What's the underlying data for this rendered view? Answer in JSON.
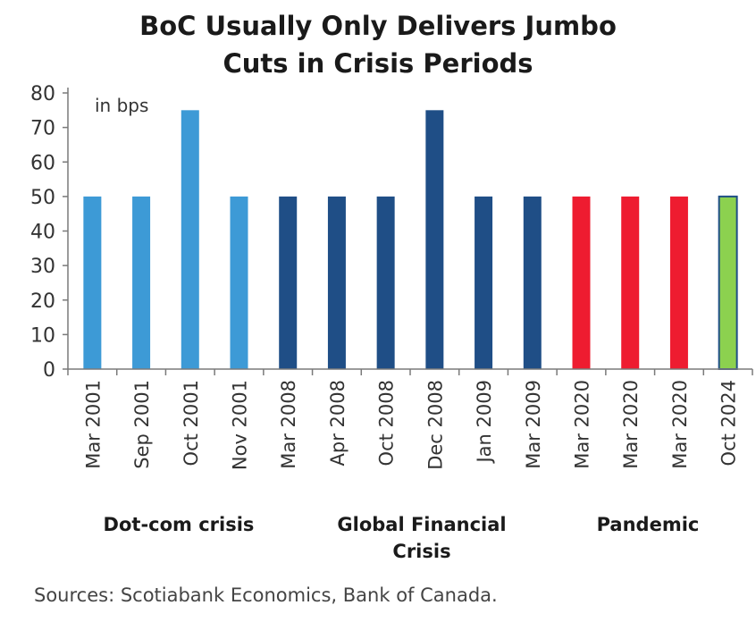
{
  "title_line1": "BoC Usually Only Delivers Jumbo",
  "title_line2": "Cuts in Crisis Periods",
  "source": "Sources: Scotiabank Economics, Bank of Canada.",
  "groups": {
    "dotcom": "Dot-com crisis",
    "gfc_line1": "Global Financial",
    "gfc_line2": "Crisis",
    "pandemic": "Pandemic"
  },
  "colors": {
    "dotcom": "#3d9ad6",
    "gfc": "#1f4e86",
    "pandemic": "#ee1c30",
    "latest": "#8cd14f",
    "latest_border": "#1f4e86"
  },
  "chart_data": {
    "type": "bar",
    "unit_label": "in bps",
    "ylim": [
      0,
      80
    ],
    "yticks": [
      0,
      10,
      20,
      30,
      40,
      50,
      60,
      70,
      80
    ],
    "categories": [
      "Mar 2001",
      "Sep 2001",
      "Oct 2001",
      "Nov 2001",
      "Mar 2008",
      "Apr 2008",
      "Oct 2008",
      "Dec 2008",
      "Jan 2009",
      "Mar 2009",
      "Mar 2020",
      "Mar 2020",
      "Mar 2020",
      "Oct 2024"
    ],
    "values": [
      50,
      50,
      75,
      50,
      50,
      50,
      50,
      75,
      50,
      50,
      50,
      50,
      50,
      50
    ],
    "bar_group": [
      "dotcom",
      "dotcom",
      "dotcom",
      "dotcom",
      "gfc",
      "gfc",
      "gfc",
      "gfc",
      "gfc",
      "gfc",
      "pandemic",
      "pandemic",
      "pandemic",
      "latest"
    ],
    "grid": false,
    "legend": "none"
  }
}
